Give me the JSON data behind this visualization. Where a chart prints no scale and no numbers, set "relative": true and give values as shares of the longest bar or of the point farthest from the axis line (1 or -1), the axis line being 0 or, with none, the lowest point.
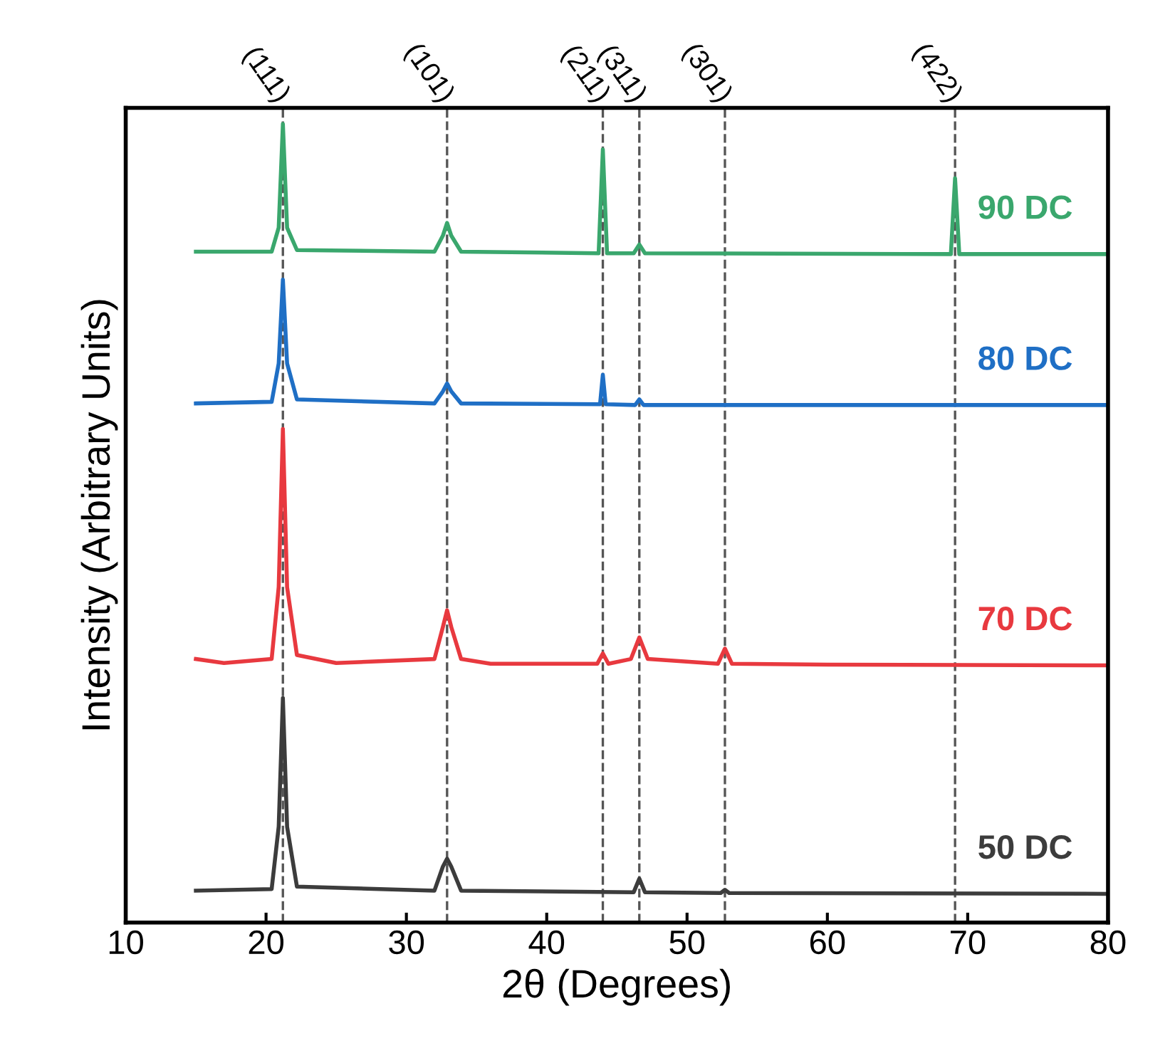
{
  "chart_data": {
    "type": "line",
    "relative": true,
    "xlabel": "2θ (Degrees)",
    "ylabel": "Intensity (Arbitrary Units)",
    "xlim": [
      10,
      80
    ],
    "xticks": [
      10,
      20,
      30,
      40,
      50,
      60,
      70,
      80
    ],
    "grid": false,
    "legend": false,
    "tick_labels": "x",
    "line_style": "solid",
    "marker": "none",
    "series": [
      {
        "name": "90 DC",
        "color": "#3aa76d",
        "x": [
          15,
          20.4,
          20.9,
          21.2,
          21.5,
          22.2,
          32.0,
          32.6,
          32.9,
          33.2,
          33.9,
          43.7,
          44.0,
          44.3,
          46.2,
          46.6,
          47.0,
          68.8,
          69.1,
          69.4,
          80
        ],
        "values": [
          0.84,
          0.84,
          0.87,
          1.0,
          0.87,
          0.842,
          0.84,
          0.86,
          0.876,
          0.86,
          0.84,
          0.838,
          0.968,
          0.838,
          0.838,
          0.849,
          0.838,
          0.837,
          0.932,
          0.837,
          0.837
        ]
      },
      {
        "name": "80 DC",
        "color": "#1f6fc5",
        "x": [
          15,
          20.4,
          20.9,
          21.2,
          21.5,
          22.2,
          32.0,
          32.6,
          32.9,
          33.2,
          33.9,
          43.8,
          44.0,
          44.2,
          46.3,
          46.6,
          46.9,
          80
        ],
        "values": [
          0.65,
          0.652,
          0.7,
          0.805,
          0.7,
          0.655,
          0.65,
          0.665,
          0.675,
          0.665,
          0.65,
          0.649,
          0.686,
          0.649,
          0.648,
          0.655,
          0.648,
          0.648
        ]
      },
      {
        "name": "70 DC",
        "color": "#e8393f",
        "x": [
          15,
          17,
          20.4,
          20.9,
          21.2,
          21.5,
          22.2,
          25,
          32.0,
          32.6,
          32.9,
          33.2,
          33.9,
          36,
          43.6,
          44.0,
          44.4,
          46.0,
          46.6,
          47.2,
          52.2,
          52.7,
          53.2,
          60,
          80
        ],
        "values": [
          0.33,
          0.325,
          0.33,
          0.42,
          0.618,
          0.42,
          0.335,
          0.325,
          0.33,
          0.37,
          0.391,
          0.37,
          0.33,
          0.324,
          0.324,
          0.337,
          0.324,
          0.33,
          0.357,
          0.33,
          0.324,
          0.343,
          0.324,
          0.323,
          0.322
        ]
      },
      {
        "name": "50 DC",
        "color": "#3c3c3c",
        "x": [
          15,
          20.4,
          20.9,
          21.2,
          21.5,
          22.2,
          32.0,
          32.6,
          32.9,
          33.2,
          33.9,
          46.2,
          46.6,
          47.0,
          52.4,
          52.7,
          53.0,
          80
        ],
        "values": [
          0.04,
          0.042,
          0.12,
          0.281,
          0.12,
          0.045,
          0.04,
          0.07,
          0.08,
          0.07,
          0.04,
          0.038,
          0.055,
          0.038,
          0.037,
          0.041,
          0.037,
          0.036
        ]
      }
    ],
    "annotations": [
      "(111)",
      "(101)",
      "(211)",
      "(311)",
      "(301)",
      "(422)"
    ],
    "ref_lines": [
      {
        "axis": "x",
        "value": 21.2,
        "color": "#555555",
        "line_style": "dashed"
      },
      {
        "axis": "x",
        "value": 32.9,
        "color": "#555555",
        "line_style": "dashed"
      },
      {
        "axis": "x",
        "value": 44.0,
        "color": "#555555",
        "line_style": "dashed"
      },
      {
        "axis": "x",
        "value": 46.6,
        "color": "#555555",
        "line_style": "dashed"
      },
      {
        "axis": "x",
        "value": 52.7,
        "color": "#555555",
        "line_style": "dashed"
      },
      {
        "axis": "x",
        "value": 69.1,
        "color": "#555555",
        "line_style": "dashed"
      }
    ]
  }
}
